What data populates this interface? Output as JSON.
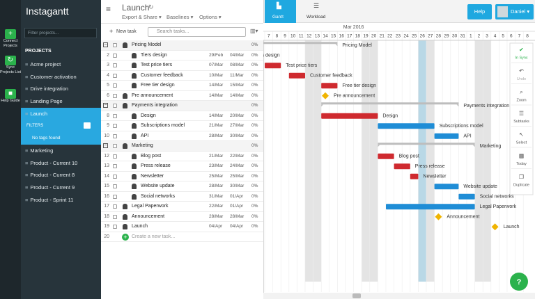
{
  "app": {
    "title": "Instagantt",
    "sidebar_buttons": [
      "Connect Projects",
      "Sync Projects List",
      "Help Guide"
    ],
    "filter_placeholder": "Filter projects...",
    "projects_header": "PROJECTS",
    "projects_before": [
      "Acme project",
      "Customer activation",
      "Drive integration",
      "Landing Page",
      "Launch"
    ],
    "filters_label": "FILTERS",
    "no_tags": "No tags found",
    "projects_after": [
      "Marketing",
      "Product - Current 10",
      "Product - Current 8",
      "Product - Current 9",
      "Product - Sprint 11"
    ]
  },
  "header": {
    "project": "Launch",
    "menus": [
      "Export & Share ▾",
      "Baselines ▾",
      "Options ▾"
    ],
    "new_task": "New task",
    "search_placeholder": "Search tasks...",
    "tabs": [
      "Gantt",
      "Workload"
    ],
    "help": "Help",
    "user": "Daniel ▾"
  },
  "tasks": [
    {
      "num": null,
      "name": "Pricing Model",
      "start": null,
      "end": null,
      "progress": "0%",
      "kind": "group",
      "level": 0,
      "color": "#bdbdbd"
    },
    {
      "num": "2",
      "name": "Tiers design",
      "start": "29/Feb",
      "end": "04/Mar",
      "progress": "0%",
      "kind": "task",
      "level": 1,
      "color": "#cf2a2f"
    },
    {
      "num": "3",
      "name": "Test price tiers",
      "start": "07/Mar",
      "end": "08/Mar",
      "progress": "0%",
      "kind": "task",
      "level": 1,
      "color": "#cf2a2f"
    },
    {
      "num": "4",
      "name": "Customer feedback",
      "start": "10/Mar",
      "end": "11/Mar",
      "progress": "0%",
      "kind": "task",
      "level": 1,
      "color": "#cf2a2f"
    },
    {
      "num": "5",
      "name": "Free tier design",
      "start": "14/Mar",
      "end": "15/Mar",
      "progress": "0%",
      "kind": "task",
      "level": 1,
      "color": "#cf2a2f"
    },
    {
      "num": "6",
      "name": "Pre announcement",
      "start": "14/Mar",
      "end": "14/Mar",
      "progress": "0%",
      "kind": "milestone",
      "level": 0,
      "color": "#f0b400"
    },
    {
      "num": null,
      "name": "Payments integration",
      "start": null,
      "end": null,
      "progress": "0%",
      "kind": "group",
      "level": 0,
      "color": "#bdbdbd"
    },
    {
      "num": "8",
      "name": "Design",
      "start": "14/Mar",
      "end": "20/Mar",
      "progress": "0%",
      "kind": "task",
      "level": 1,
      "color": "#cf2a2f"
    },
    {
      "num": "9",
      "name": "Subscriptions model",
      "start": "21/Mar",
      "end": "27/Mar",
      "progress": "0%",
      "kind": "task",
      "level": 1,
      "color": "#1f8dd6"
    },
    {
      "num": "10",
      "name": "API",
      "start": "28/Mar",
      "end": "30/Mar",
      "progress": "0%",
      "kind": "task",
      "level": 1,
      "color": "#1f8dd6"
    },
    {
      "num": null,
      "name": "Marketing",
      "start": null,
      "end": null,
      "progress": "0%",
      "kind": "group",
      "level": 0,
      "color": "#bdbdbd"
    },
    {
      "num": "12",
      "name": "Blog post",
      "start": "21/Mar",
      "end": "22/Mar",
      "progress": "0%",
      "kind": "task",
      "level": 1,
      "color": "#cf2a2f"
    },
    {
      "num": "13",
      "name": "Press release",
      "start": "23/Mar",
      "end": "24/Mar",
      "progress": "0%",
      "kind": "task",
      "level": 1,
      "color": "#cf2a2f"
    },
    {
      "num": "14",
      "name": "Newsletter",
      "start": "25/Mar",
      "end": "25/Mar",
      "progress": "0%",
      "kind": "task",
      "level": 1,
      "color": "#cf2a2f"
    },
    {
      "num": "15",
      "name": "Website update",
      "start": "28/Mar",
      "end": "30/Mar",
      "progress": "0%",
      "kind": "task",
      "level": 1,
      "color": "#1f8dd6"
    },
    {
      "num": "16",
      "name": "Social networks",
      "start": "31/Mar",
      "end": "01/Apr",
      "progress": "0%",
      "kind": "task",
      "level": 1,
      "color": "#1f8dd6"
    },
    {
      "num": "17",
      "name": "Legal Paperwork",
      "start": "22/Mar",
      "end": "01/Apr",
      "progress": "0%",
      "kind": "task",
      "level": 0,
      "color": "#1f8dd6"
    },
    {
      "num": "18",
      "name": "Announcement",
      "start": "28/Mar",
      "end": "28/Mar",
      "progress": "0%",
      "kind": "milestone",
      "level": 0,
      "color": "#f0b400"
    },
    {
      "num": "19",
      "name": "Launch",
      "start": "04/Apr",
      "end": "04/Apr",
      "progress": "0%",
      "kind": "milestone",
      "level": 0,
      "color": "#f0b400"
    }
  ],
  "new_row": {
    "num": "20",
    "label": "Create a new task..."
  },
  "timeline": {
    "month": "Mar 2016",
    "days": [
      "7",
      "8",
      "9",
      "10",
      "11",
      "12",
      "13",
      "14",
      "15",
      "16",
      "17",
      "18",
      "19",
      "20",
      "21",
      "22",
      "23",
      "24",
      "25",
      "26",
      "27",
      "28",
      "29",
      "30",
      "31",
      "1",
      "2",
      "3",
      "4",
      "5",
      "6",
      "7",
      "8"
    ]
  },
  "toolbar": [
    "In Sync",
    "Undo",
    "Zoom",
    "Subtasks",
    "Select",
    "Today",
    "Duplicate"
  ]
}
